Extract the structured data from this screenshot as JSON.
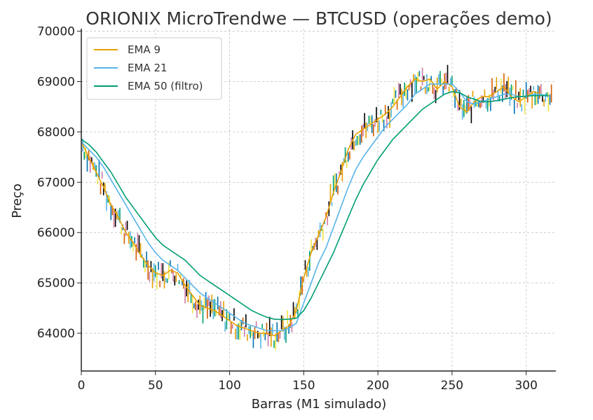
{
  "chart_data": {
    "type": "line",
    "title": "ORIONIX MicroTrendwe — BTCUSD (operações demo)",
    "xlabel": "Barras (M1 simulado)",
    "ylabel": "Preço",
    "xlim": [
      0,
      320
    ],
    "ylim": [
      63250,
      70050
    ],
    "xticks": [
      0,
      50,
      100,
      150,
      200,
      250,
      300
    ],
    "yticks": [
      64000,
      65000,
      66000,
      67000,
      68000,
      69000,
      70000
    ],
    "grid": true,
    "legend_position": "top-left",
    "series": [
      {
        "name": "EMA 9",
        "color": "#E69F00",
        "x": [
          0,
          5,
          10,
          15,
          20,
          25,
          30,
          35,
          40,
          45,
          50,
          55,
          60,
          65,
          70,
          75,
          80,
          85,
          90,
          95,
          100,
          105,
          110,
          115,
          120,
          125,
          130,
          135,
          140,
          145,
          150,
          155,
          160,
          165,
          170,
          175,
          180,
          185,
          190,
          195,
          200,
          205,
          210,
          215,
          220,
          225,
          230,
          235,
          240,
          245,
          250,
          255,
          260,
          265,
          270,
          275,
          280,
          285,
          290,
          295,
          300,
          305,
          310,
          315
        ],
        "y": [
          67800,
          67500,
          67200,
          66900,
          66550,
          66300,
          66000,
          65800,
          65550,
          65350,
          65200,
          65150,
          65250,
          65200,
          64950,
          64750,
          64550,
          64500,
          64450,
          64350,
          64250,
          64150,
          64100,
          64050,
          64000,
          64000,
          63950,
          64050,
          64150,
          64450,
          65100,
          65600,
          65950,
          66300,
          66800,
          67200,
          67650,
          67950,
          68050,
          68150,
          68250,
          68350,
          68500,
          68700,
          68900,
          69050,
          69000,
          69050,
          68850,
          69000,
          68900,
          68500,
          68400,
          68600,
          68700,
          68700,
          68800,
          68900,
          68700,
          68600,
          68700,
          68800,
          68750,
          68700
        ]
      },
      {
        "name": "EMA 21",
        "color": "#56B4E9",
        "x": [
          0,
          5,
          10,
          15,
          20,
          25,
          30,
          35,
          40,
          45,
          50,
          55,
          60,
          65,
          70,
          75,
          80,
          85,
          90,
          95,
          100,
          105,
          110,
          115,
          120,
          125,
          130,
          135,
          140,
          145,
          150,
          155,
          160,
          165,
          170,
          175,
          180,
          185,
          190,
          195,
          200,
          205,
          210,
          215,
          220,
          225,
          230,
          235,
          240,
          245,
          250,
          255,
          260,
          265,
          270,
          275,
          280,
          285,
          290,
          295,
          300,
          305,
          310,
          315
        ],
        "y": [
          67800,
          67650,
          67500,
          67300,
          67050,
          66800,
          66550,
          66300,
          66050,
          65800,
          65600,
          65450,
          65350,
          65250,
          65100,
          64950,
          64800,
          64700,
          64600,
          64500,
          64400,
          64300,
          64200,
          64150,
          64100,
          64050,
          64050,
          64050,
          64100,
          64200,
          64600,
          65000,
          65400,
          65700,
          66100,
          66500,
          66900,
          67250,
          67500,
          67700,
          67900,
          68100,
          68250,
          68400,
          68550,
          68750,
          68850,
          68950,
          68950,
          68950,
          68950,
          68800,
          68600,
          68550,
          68600,
          68650,
          68700,
          68750,
          68750,
          68700,
          68700,
          68750,
          68750,
          68700
        ]
      },
      {
        "name": "EMA 50 (filtro)",
        "color": "#009E73",
        "x": [
          0,
          5,
          10,
          15,
          20,
          25,
          30,
          35,
          40,
          45,
          50,
          55,
          60,
          65,
          70,
          75,
          80,
          85,
          90,
          95,
          100,
          105,
          110,
          115,
          120,
          125,
          130,
          135,
          140,
          145,
          150,
          155,
          160,
          165,
          170,
          175,
          180,
          185,
          190,
          195,
          200,
          205,
          210,
          215,
          220,
          225,
          230,
          235,
          240,
          245,
          250,
          255,
          260,
          265,
          270,
          275,
          280,
          285,
          290,
          295,
          300,
          305,
          310,
          315
        ],
        "y": [
          67850,
          67750,
          67600,
          67400,
          67200,
          66950,
          66700,
          66500,
          66300,
          66100,
          65900,
          65750,
          65650,
          65550,
          65450,
          65300,
          65150,
          65050,
          64950,
          64850,
          64750,
          64650,
          64550,
          64450,
          64380,
          64320,
          64280,
          64270,
          64280,
          64300,
          64450,
          64700,
          65000,
          65300,
          65600,
          65950,
          66300,
          66650,
          66950,
          67200,
          67450,
          67650,
          67850,
          68000,
          68150,
          68300,
          68450,
          68550,
          68650,
          68750,
          68800,
          68780,
          68700,
          68650,
          68600,
          68600,
          68620,
          68650,
          68680,
          68700,
          68710,
          68720,
          68720,
          68720
        ]
      }
    ]
  }
}
